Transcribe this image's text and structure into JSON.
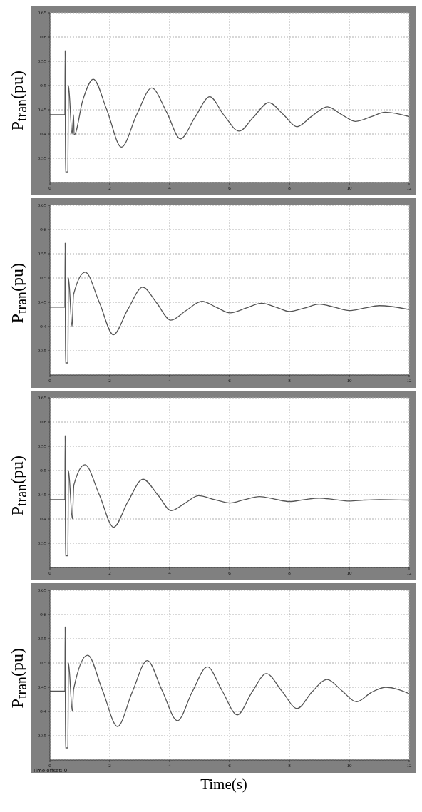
{
  "chart_data": [
    {
      "type": "line",
      "ylabel": "P$_{tran}$(pu)",
      "color": "#555555",
      "grid": true,
      "xlim": [
        0,
        12
      ],
      "xticks": [
        0,
        2,
        4,
        6,
        8,
        10,
        12
      ],
      "ylim": [
        0.3,
        0.65
      ],
      "yticks": [
        0.35,
        0.4,
        0.45,
        0.5,
        0.55,
        0.6,
        0.65
      ],
      "x": [
        0,
        0.5,
        0.51,
        0.52,
        0.6,
        0.62,
        0.74,
        0.79,
        0.81,
        1.1,
        1.45,
        1.9,
        2.39,
        2.9,
        3.4,
        3.9,
        4.36,
        4.85,
        5.34,
        5.8,
        6.32,
        6.8,
        7.31,
        7.8,
        8.25,
        8.75,
        9.27,
        9.75,
        10.2,
        10.7,
        11.2,
        12
      ],
      "values": [
        0.44,
        0.44,
        0.573,
        0.322,
        0.322,
        0.5,
        0.4,
        0.44,
        0.398,
        0.47,
        0.513,
        0.45,
        0.373,
        0.44,
        0.495,
        0.445,
        0.39,
        0.435,
        0.477,
        0.44,
        0.406,
        0.435,
        0.465,
        0.44,
        0.415,
        0.437,
        0.456,
        0.44,
        0.426,
        0.435,
        0.445,
        0.436
      ]
    },
    {
      "type": "line",
      "ylabel": "P$_{tran}$(pu)",
      "color": "#555555",
      "grid": true,
      "xlim": [
        0,
        12
      ],
      "xticks": [
        0,
        2,
        4,
        6,
        8,
        10,
        12
      ],
      "ylim": [
        0.3,
        0.65
      ],
      "yticks": [
        0.35,
        0.4,
        0.45,
        0.5,
        0.55,
        0.6,
        0.65
      ],
      "x": [
        0,
        0.5,
        0.51,
        0.52,
        0.6,
        0.62,
        0.74,
        0.79,
        1.18,
        1.65,
        2.12,
        2.6,
        3.1,
        3.55,
        4.04,
        4.55,
        5.08,
        5.55,
        6.02,
        6.55,
        7.07,
        7.55,
        8.0,
        8.5,
        9.0,
        9.5,
        10.0,
        10.5,
        11.0,
        12
      ],
      "values": [
        0.44,
        0.44,
        0.573,
        0.325,
        0.325,
        0.5,
        0.4,
        0.466,
        0.512,
        0.45,
        0.383,
        0.435,
        0.481,
        0.45,
        0.413,
        0.433,
        0.452,
        0.44,
        0.428,
        0.438,
        0.448,
        0.44,
        0.431,
        0.438,
        0.446,
        0.44,
        0.433,
        0.438,
        0.443,
        0.435
      ]
    },
    {
      "type": "line",
      "ylabel": "P$_{tran}$(pu)",
      "color": "#555555",
      "grid": true,
      "xlim": [
        0,
        12
      ],
      "xticks": [
        0,
        2,
        4,
        6,
        8,
        10,
        12
      ],
      "ylim": [
        0.3,
        0.65
      ],
      "yticks": [
        0.35,
        0.4,
        0.45,
        0.5,
        0.55,
        0.6,
        0.65
      ],
      "x": [
        0,
        0.5,
        0.51,
        0.52,
        0.6,
        0.62,
        0.75,
        0.8,
        1.17,
        1.65,
        2.13,
        2.6,
        3.11,
        3.6,
        4.05,
        4.5,
        4.96,
        5.5,
        6.02,
        6.5,
        7.0,
        7.5,
        8.0,
        8.5,
        9.0,
        9.5,
        10.0,
        10.5,
        11.0,
        12
      ],
      "values": [
        0.44,
        0.44,
        0.573,
        0.324,
        0.324,
        0.5,
        0.4,
        0.47,
        0.512,
        0.45,
        0.383,
        0.435,
        0.482,
        0.45,
        0.417,
        0.432,
        0.448,
        0.44,
        0.433,
        0.44,
        0.446,
        0.441,
        0.436,
        0.44,
        0.443,
        0.44,
        0.437,
        0.439,
        0.44,
        0.439
      ]
    },
    {
      "type": "line",
      "ylabel": "P$_{tran}$(pu)",
      "xlabel": "Time(s)",
      "color": "#555555",
      "grid": true,
      "xlim": [
        0,
        12
      ],
      "xticks": [
        0,
        2,
        4,
        6,
        8,
        10,
        12
      ],
      "ylim": [
        0.3,
        0.65
      ],
      "yticks": [
        0.35,
        0.4,
        0.45,
        0.5,
        0.55,
        0.6,
        0.65
      ],
      "x": [
        0,
        0.5,
        0.51,
        0.52,
        0.6,
        0.62,
        0.75,
        0.79,
        1.26,
        1.75,
        2.26,
        2.75,
        3.25,
        3.75,
        4.26,
        4.75,
        5.26,
        5.75,
        6.26,
        6.75,
        7.23,
        7.75,
        8.26,
        8.75,
        9.26,
        9.75,
        10.24,
        10.75,
        11.23,
        12
      ],
      "values": [
        0.442,
        0.442,
        0.575,
        0.325,
        0.325,
        0.5,
        0.4,
        0.445,
        0.516,
        0.445,
        0.369,
        0.44,
        0.505,
        0.443,
        0.381,
        0.44,
        0.492,
        0.443,
        0.393,
        0.44,
        0.478,
        0.442,
        0.406,
        0.44,
        0.466,
        0.443,
        0.42,
        0.44,
        0.45,
        0.437
      ],
      "annotations": [
        "Time offset: 0"
      ]
    }
  ]
}
